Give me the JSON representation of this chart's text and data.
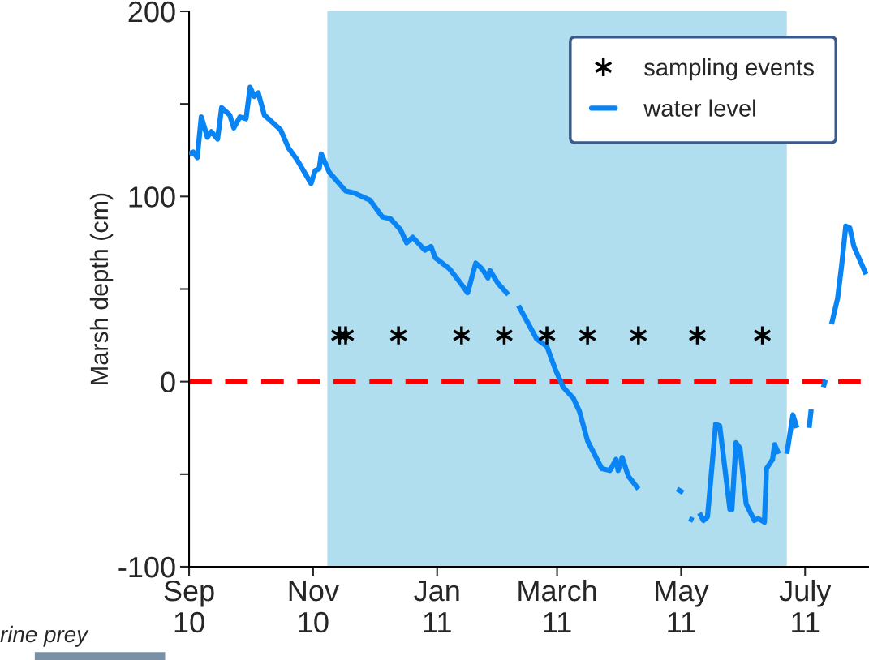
{
  "chart_data": {
    "type": "line",
    "ylabel": "Marsh depth (cm)",
    "xlim": [
      "2010-09-01",
      "2011-08-01"
    ],
    "xticks": [
      {
        "value": "2010-09-01",
        "label": "Sep\n10"
      },
      {
        "value": "2010-11-01",
        "label": "Nov\n10"
      },
      {
        "value": "2011-01-01",
        "label": "Jan\n11"
      },
      {
        "value": "2011-03-01",
        "label": "March\n11"
      },
      {
        "value": "2011-05-01",
        "label": "May\n11"
      },
      {
        "value": "2011-07-01",
        "label": "July\n11"
      }
    ],
    "ylim": [
      -100,
      200
    ],
    "yticks": [
      -100,
      {
        "value": -50,
        "label": null
      },
      0,
      {
        "value": 50,
        "label": null
      },
      100,
      {
        "value": 150,
        "label": null
      },
      200
    ],
    "grid": false,
    "legend": "top right",
    "series": [
      {
        "name": "sampling events",
        "type": "scatter",
        "marker": "cross",
        "color": "#000000",
        "x": [
          "2010-11-14",
          "2010-11-17",
          "2010-12-13",
          "2011-01-13",
          "2011-02-03",
          "2011-02-24",
          "2011-03-16",
          "2011-04-10",
          "2011-05-09",
          "2011-06-10"
        ],
        "values": [
          25,
          25,
          25,
          25,
          25,
          25,
          25,
          25,
          25,
          25
        ]
      },
      {
        "name": "water level",
        "line_style": "solid",
        "color": "#0984f5",
        "x": [
          "2010-09-01",
          "2010-09-03",
          "2010-09-05",
          "2010-09-07",
          "2010-09-10",
          "2010-09-12",
          "2010-09-15",
          "2010-09-17",
          "2010-09-21",
          "2010-09-23",
          "2010-09-26",
          "2010-09-29",
          "2010-10-01",
          "2010-10-03",
          "2010-10-05",
          "2010-10-08",
          "2010-10-13",
          "2010-10-16",
          "2010-10-20",
          "2010-10-24",
          "2010-10-31",
          "2010-11-02",
          "2010-11-04",
          "2010-11-05",
          "2010-11-09",
          "2010-11-17",
          "2010-11-21",
          "2010-11-29",
          "2010-12-05",
          "2010-12-09",
          "2010-12-14",
          "2010-12-17",
          "2010-12-20",
          "2010-12-26",
          "2010-12-29",
          "2010-12-31",
          "2011-01-07",
          "2011-01-12",
          "2011-01-16",
          "2011-01-20",
          "2011-01-23",
          "2011-01-26",
          "2011-01-27",
          "2011-01-31",
          "2011-02-05",
          "2011-02-07",
          "2011-02-10",
          "2011-02-19",
          "2011-02-24",
          "2011-02-28",
          "2011-03-04",
          "2011-03-09",
          "2011-03-12",
          "2011-03-16",
          "2011-03-23",
          "2011-03-27",
          "2011-03-30",
          "2011-03-31",
          "2011-04-02",
          "2011-04-05",
          "2011-04-10",
          "2011-04-20",
          "2011-04-29",
          "2011-05-02",
          "2011-05-03",
          "2011-05-05",
          "2011-05-07",
          "2011-05-08",
          "2011-05-10",
          "2011-05-12",
          "2011-05-14",
          "2011-05-18",
          "2011-05-20",
          "2011-05-25",
          "2011-05-26",
          "2011-05-28",
          "2011-05-30",
          "2011-06-02",
          "2011-06-06",
          "2011-06-08",
          "2011-06-11",
          "2011-06-12",
          "2011-06-15",
          "2011-06-16",
          "2011-06-18",
          "2011-06-20",
          "2011-06-22",
          "2011-06-25",
          "2011-06-27",
          "2011-06-30",
          "2011-07-03",
          "2011-07-04",
          "2011-07-07",
          "2011-07-10",
          "2011-07-11",
          "2011-07-12",
          "2011-07-14",
          "2011-07-17",
          "2011-07-19",
          "2011-07-21",
          "2011-07-23",
          "2011-07-25",
          "2011-07-31"
        ],
        "values": [
          123,
          124,
          121,
          143,
          132,
          135,
          131,
          148,
          144,
          137,
          143,
          142,
          159,
          154,
          156,
          144,
          139,
          136,
          126,
          120,
          107,
          114,
          115,
          123,
          113,
          103,
          102,
          98,
          89,
          88,
          82,
          75,
          78,
          71,
          73,
          67,
          61,
          54,
          48,
          64,
          61,
          56,
          60,
          53,
          47,
          null,
          41,
          23,
          19,
          7,
          -3,
          -9,
          -16,
          -32,
          -47,
          -48,
          -42,
          -48,
          -41,
          -51,
          -58,
          null,
          -58,
          -60,
          null,
          -74,
          -75,
          null,
          -71,
          -75,
          -73,
          -23,
          -24,
          -69,
          -69,
          -33,
          -36,
          -66,
          -75,
          -74,
          -76,
          -47,
          -42,
          -34,
          -39,
          null,
          -39,
          -18,
          -25,
          null,
          -25,
          -15,
          null,
          -3,
          1,
          null,
          31,
          45,
          63,
          84,
          83,
          73,
          58
        ]
      }
    ],
    "ref_lines": [
      {
        "axis": "y",
        "value": 0,
        "color": "#ff0000",
        "line_style": "dashed"
      }
    ],
    "bands": [
      {
        "axis": "x",
        "from": "2010-11-08",
        "to": "2011-06-22",
        "color": "#b0deee"
      }
    ],
    "annotations": [
      "rine prey"
    ]
  }
}
